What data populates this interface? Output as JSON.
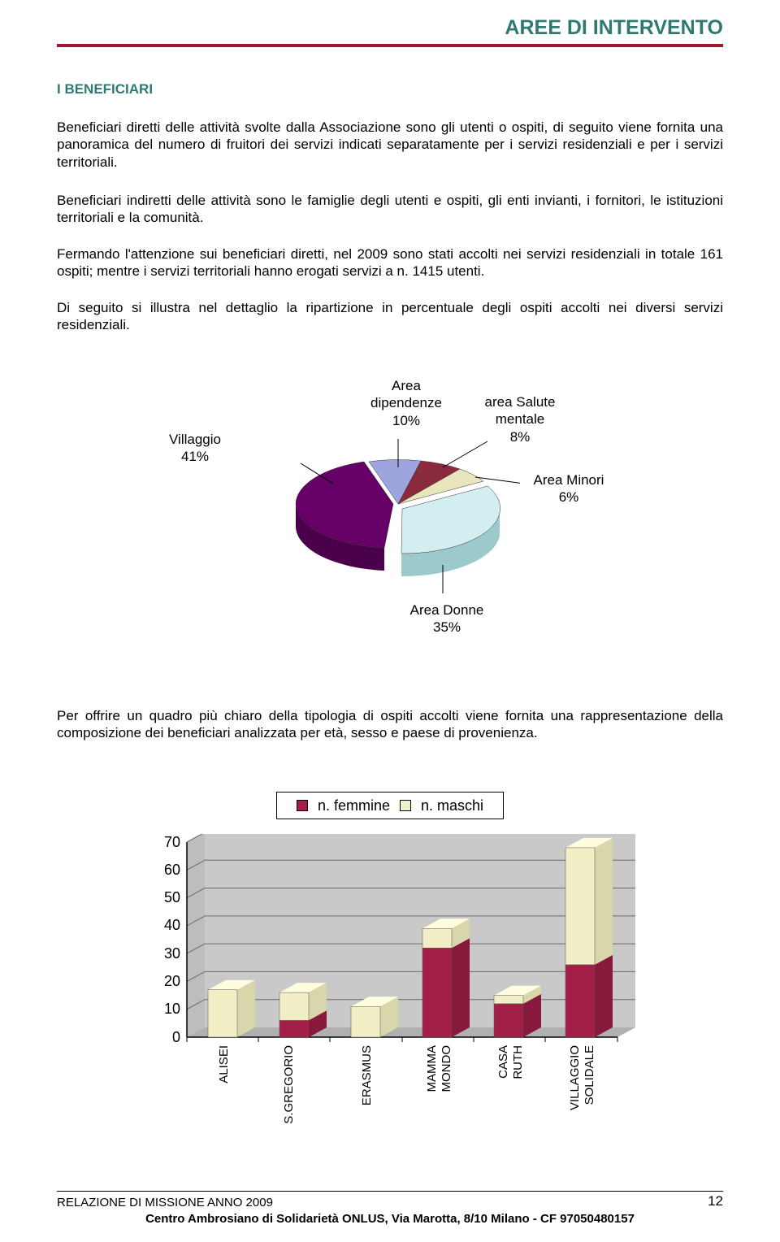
{
  "header": {
    "title": "AREE DI INTERVENTO",
    "title_color": "#2f7a6f",
    "rule_color": "#a21830"
  },
  "section": {
    "heading": "I BENEFICIARI",
    "heading_color": "#2f7a6f"
  },
  "paragraphs": {
    "p1": "Beneficiari diretti delle attività svolte dalla Associazione sono gli utenti o ospiti, di seguito viene fornita una panoramica del numero di fruitori dei servizi indicati separatamente per i servizi residenziali e per i servizi territoriali.",
    "p2": "Beneficiari indiretti delle attività sono le famiglie degli utenti e ospiti, gli enti invianti, i fornitori, le istituzioni territoriali e la comunità.",
    "p3": "Fermando l'attenzione sui beneficiari diretti, nel 2009 sono stati accolti nei servizi residenziali in totale 161 ospiti; mentre i servizi territoriali hanno erogati servizi a n. 1415 utenti.",
    "p4": "Di seguito si illustra nel dettaglio la ripartizione in percentuale degli ospiti accolti nei diversi servizi residenziali.",
    "p5": "Per offrire un quadro più chiaro della tipologia di ospiti accolti viene fornita una rappresentazione della composizione dei beneficiari analizzata per età, sesso e paese di provenienza."
  },
  "pie_chart": {
    "type": "pie-3d",
    "background_color": "#ffffff",
    "slices": [
      {
        "label": "Villaggio\n41%",
        "value": 41,
        "color_top": "#660066",
        "color_side": "#4a004a",
        "explode": 6
      },
      {
        "label": "Area\ndipendenze\n10%",
        "value": 10,
        "color_top": "#9ea4de",
        "color_side": "#6f76b8",
        "explode": 0
      },
      {
        "label": "area Salute\nmentale\n8%",
        "value": 8,
        "color_top": "#8a2a3c",
        "color_side": "#70212f",
        "explode": 0
      },
      {
        "label": "Area Minori\n6%",
        "value": 6,
        "color_top": "#e9e6bd",
        "color_side": "#c8c49a",
        "explode": 0
      },
      {
        "label": "Area Donne\n35%",
        "value": 35,
        "color_top": "#d3eef0",
        "color_side": "#9cc9cc",
        "explode": 6
      }
    ],
    "label_fontsize": 17,
    "label_font": "Arial"
  },
  "bar_chart": {
    "type": "stacked-bar-3d",
    "categories": [
      "ALISEI",
      "S.GREGORIO",
      "ERASMUS",
      "MAMMA MONDO",
      "CASA RUTH",
      "VILLAGGIO SOLIDALE"
    ],
    "series": [
      {
        "name": "n. femmine",
        "color": "#a22048",
        "values": [
          0,
          6,
          0,
          32,
          12,
          26
        ]
      },
      {
        "name": "n. maschi",
        "color": "#f2efc6",
        "values": [
          17,
          10,
          11,
          7,
          3,
          42
        ]
      }
    ],
    "ylim": [
      0,
      70
    ],
    "ytick_step": 10,
    "y_ticks": [
      0,
      10,
      20,
      30,
      40,
      50,
      60,
      70
    ],
    "wall_color": "#c9c9c9",
    "floor_color": "#b8b8b8",
    "grid_color": "#6b6b6b",
    "axis_label_fontsize": 18,
    "category_label_fontsize": 14,
    "bar_width": 0.5
  },
  "legend": {
    "item1_label": "n. femmine",
    "item1_color": "#a22048",
    "item2_label": "n. maschi",
    "item2_color": "#f2efc6"
  },
  "footer": {
    "left": "RELAZIONE DI MISSIONE ANNO 2009",
    "center": "Centro Ambrosiano di Solidarietà ONLUS, Via Marotta, 8/10 Milano  -  CF 97050480157",
    "page": "12"
  }
}
